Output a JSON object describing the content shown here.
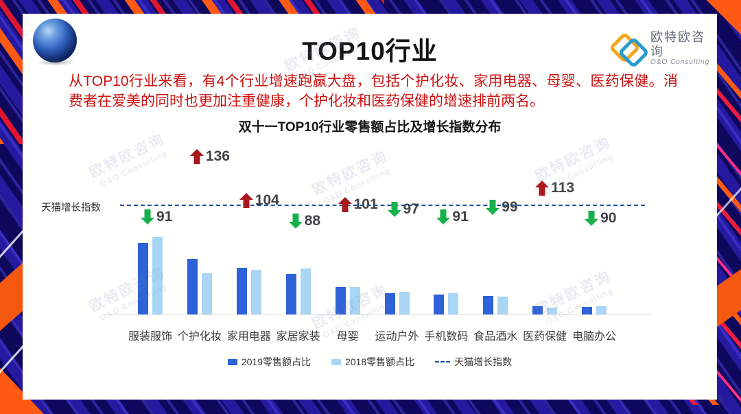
{
  "page": {
    "title": "TOP10行业",
    "logo": {
      "name": "欧特欧咨询",
      "sub": "O&O Consulting"
    },
    "description": "从TOP10行业来看，有4个行业增速跑赢大盘，包括个护化妆、家用电器、母婴、医药保健。消费者在爱美的同时也更加注重健康，个护化妆和医药保健的增速排前两名。",
    "description_color": "#cc1212",
    "watermark_line1": "欧特欧咨询",
    "watermark_line2": "O&O Consulting"
  },
  "chart_data": {
    "type": "bar",
    "title": "双十一TOP10行业零售额占比及增长指数分布",
    "categories": [
      "服装服饰",
      "个护化妆",
      "家用电器",
      "家居家装",
      "母婴",
      "运动户外",
      "手机数码",
      "食品酒水",
      "医药保健",
      "电脑办公"
    ],
    "series": [
      {
        "name": "2019零售额占比",
        "color": "#2e62d9",
        "values": [
          20.8,
          16.2,
          13.6,
          11.8,
          8.0,
          6.2,
          5.8,
          5.4,
          2.4,
          2.2
        ]
      },
      {
        "name": "2018零售额占比",
        "color": "#a9d6f5",
        "values": [
          22.6,
          12.0,
          13.0,
          13.4,
          8.0,
          6.6,
          6.2,
          5.2,
          2.0,
          2.4
        ]
      }
    ],
    "index_series": {
      "name": "天猫增长指数",
      "baseline": 100,
      "values": [
        91,
        136,
        104,
        88,
        101,
        97,
        91,
        99,
        113,
        90
      ],
      "up_color": "#a8191d",
      "down_color": "#17b14b",
      "line_color": "#1e4e9e",
      "number_color": "#3f4446"
    },
    "baseline_label": "天猫增长指数",
    "legend": [
      "2019零售额占比",
      "2018零售额占比",
      "天猫增长指数"
    ],
    "legend_position": "bottom-center",
    "grid": false,
    "ylim": [
      0,
      24
    ]
  }
}
